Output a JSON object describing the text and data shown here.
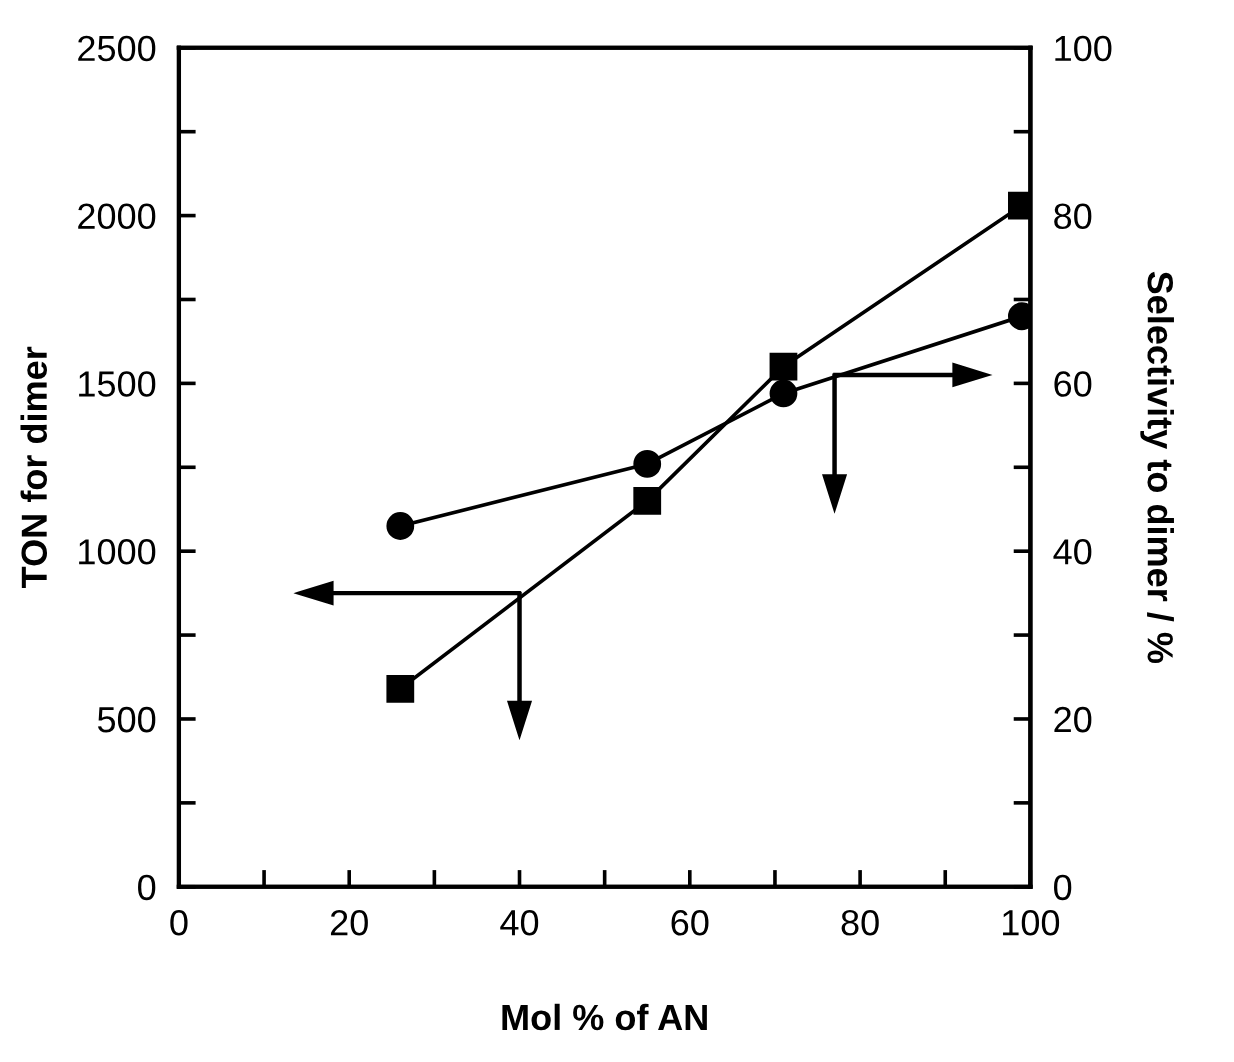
{
  "chart_data": {
    "type": "line",
    "xlabel": "Mol % of AN",
    "ylabel": "TON for dimer",
    "y2label": "Selectivity to dimer / %",
    "x": [
      26,
      55,
      71,
      99
    ],
    "series": [
      {
        "color": "#000000",
        "marker": "square",
        "values": [
          590,
          1150,
          1550,
          2030
        ]
      },
      {
        "color": "#000000",
        "marker": "circle",
        "axis": "y2",
        "values": [
          43,
          50.4,
          58.8,
          68
        ]
      }
    ],
    "xlim": [
      0,
      100
    ],
    "xticks": [
      0,
      {
        "value": 10,
        "label": null
      },
      20,
      {
        "value": 30,
        "label": null
      },
      40,
      {
        "value": 50,
        "label": null
      },
      60,
      {
        "value": 70,
        "label": null
      },
      80,
      {
        "value": 90,
        "label": null
      },
      100
    ],
    "ylim": [
      0,
      2500
    ],
    "yticks": [
      0,
      {
        "value": 250,
        "label": null
      },
      500,
      {
        "value": 750,
        "label": null
      },
      1000,
      {
        "value": 1250,
        "label": null
      },
      1500,
      {
        "value": 1750,
        "label": null
      },
      2000,
      {
        "value": 2250,
        "label": null
      },
      2500
    ],
    "y2lim": [
      0,
      100
    ],
    "y2ticks": [
      0,
      {
        "value": 10,
        "label": null
      },
      20,
      {
        "value": 30,
        "label": null
      },
      40,
      {
        "value": 50,
        "label": null
      },
      60,
      {
        "value": 70,
        "label": null
      },
      80,
      {
        "value": 90,
        "label": null
      },
      100
    ],
    "grid": false,
    "legend": false
  }
}
